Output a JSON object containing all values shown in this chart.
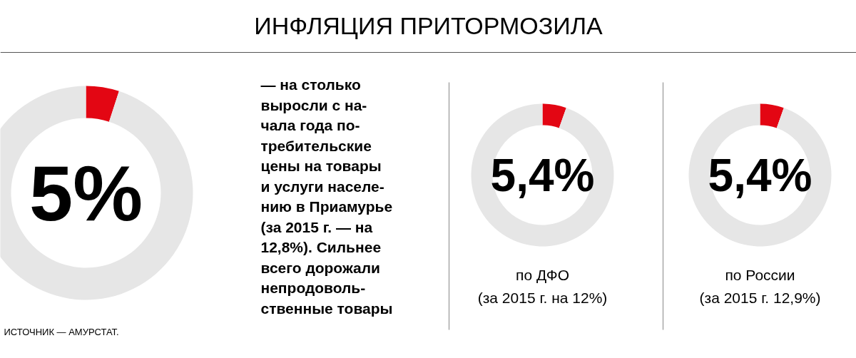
{
  "chart_data": [
    {
      "type": "donut",
      "title": "ИНФЛЯЦИЯ ПРИТОРМОЗИЛА",
      "categories": [
        null,
        null
      ],
      "values": [
        5,
        95
      ],
      "colors": [
        "#e30613",
        "#e6e6e6"
      ],
      "annotations": [
        "5%",
        "— на столько\nвыросли с на-\nчала года по-\nтребительские\nцены на товары\nи услуги населе-\nнию в Приамурье\n(за 2015 г. — на\n12,8%). Сильнее\nвсего дорожали\nнепродоволь-\nственные товары",
        "ИСТОЧНИК — АМУРСТАТ."
      ]
    },
    {
      "type": "donut",
      "categories": [
        null,
        null
      ],
      "values": [
        5.4,
        94.6
      ],
      "colors": [
        "#e30613",
        "#e6e6e6"
      ],
      "annotations": [
        "5,4%",
        "по ДФО",
        "(за 2015 г. на 12%)"
      ]
    },
    {
      "type": "donut",
      "categories": [
        null,
        null
      ],
      "values": [
        5.4,
        94.6
      ],
      "colors": [
        "#e30613",
        "#e6e6e6"
      ],
      "annotations": [
        "5,4%",
        "по России",
        "(за 2015 г. 12,9%)"
      ]
    }
  ]
}
